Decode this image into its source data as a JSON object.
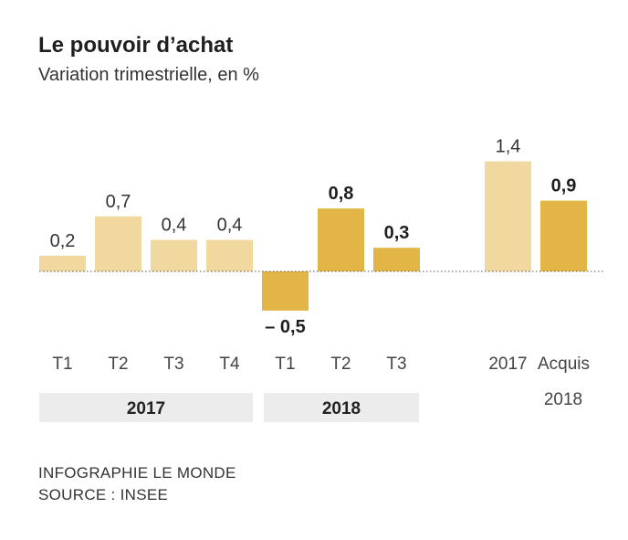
{
  "title": "Le pouvoir d’achat",
  "subtitle": "Variation trimestrielle, en %",
  "credit": {
    "line1": "INFOGRAPHIE LE MONDE",
    "line2": "SOURCE : INSEE"
  },
  "colors": {
    "light": "#f1d89f",
    "dark": "#e1b646",
    "group_bg": "#ececec",
    "text": "#333333"
  },
  "chart_data": {
    "type": "bar",
    "title": "Le pouvoir d’achat",
    "subtitle": "Variation trimestrielle, en %",
    "ylabel": "",
    "xlabel": "",
    "grid": false,
    "baseline": "dotted",
    "points": [
      {
        "label": "T1",
        "group": "2017",
        "value": 0.2,
        "display": "0,2",
        "style": "light"
      },
      {
        "label": "T2",
        "group": "2017",
        "value": 0.7,
        "display": "0,7",
        "style": "light"
      },
      {
        "label": "T3",
        "group": "2017",
        "value": 0.4,
        "display": "0,4",
        "style": "light"
      },
      {
        "label": "T4",
        "group": "2017",
        "value": 0.4,
        "display": "0,4",
        "style": "light"
      },
      {
        "label": "T1",
        "group": "2018",
        "value": -0.5,
        "display": "– 0,5",
        "style": "dark"
      },
      {
        "label": "T2",
        "group": "2018",
        "value": 0.8,
        "display": "0,8",
        "style": "dark"
      },
      {
        "label": "T3",
        "group": "2018",
        "value": 0.3,
        "display": "0,3",
        "style": "dark"
      },
      {
        "label": "2017",
        "group": "",
        "value": 1.4,
        "display": "1,4",
        "style": "light"
      },
      {
        "label": "Acquis",
        "group": "",
        "value": 0.9,
        "display": "0,9",
        "style": "dark"
      }
    ],
    "groups": [
      "2017",
      "2018"
    ],
    "extra_label": "2018"
  }
}
